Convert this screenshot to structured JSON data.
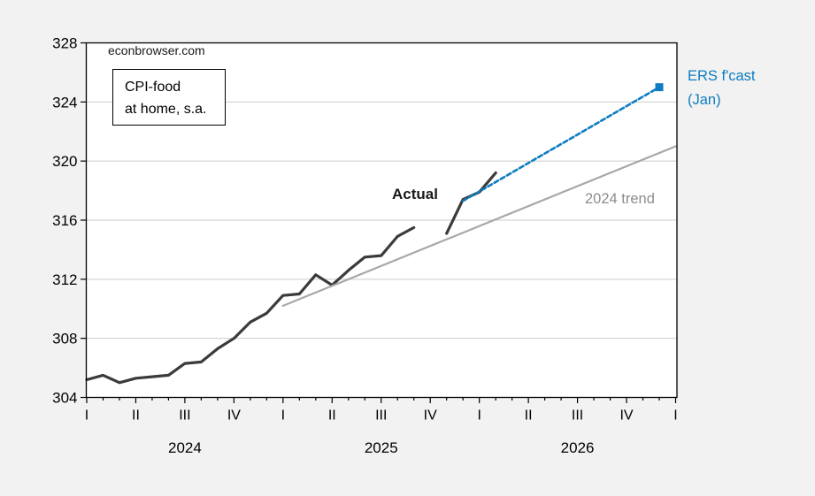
{
  "page": {
    "background": "#f2f2f2",
    "plot_background": "#ffffff"
  },
  "watermark": "econbrowser.com",
  "annotations": {
    "series_box_line1": "CPI-food",
    "series_box_line2": "at home, s.a.",
    "actual_label": "Actual",
    "trend_label": "2024 trend",
    "forecast_label_line1": "ERS f'cast",
    "forecast_label_line2": "(Jan)"
  },
  "colors": {
    "actual": "#3b3b3b",
    "trend": "#a8a8a8",
    "forecast": "#0d7cc1",
    "grid": "#cbcbcb",
    "frame": "#000000",
    "tick_text": "#000000",
    "gray_label": "#8c8c8c"
  },
  "chart_data": {
    "type": "line",
    "title": "CPI-food at home, s.a.",
    "source_watermark": "econbrowser.com",
    "ylabel": "",
    "xlabel": "",
    "ylim": [
      304,
      328
    ],
    "y_ticks": [
      304,
      308,
      312,
      316,
      320,
      324,
      328
    ],
    "grid": "horizontal",
    "x_range_months": [
      "2024-01",
      "2027-01"
    ],
    "x_quarter_labels": [
      "I",
      "II",
      "III",
      "IV",
      "I",
      "II",
      "III",
      "IV",
      "I",
      "II",
      "III",
      "IV",
      "I"
    ],
    "x_year_labels": [
      {
        "label": "2024",
        "month": "2024-07"
      },
      {
        "label": "2025",
        "month": "2025-07"
      },
      {
        "label": "2026",
        "month": "2026-07"
      }
    ],
    "note": "Gap in Actual series at 2025-10 (no data point plotted)",
    "series": [
      {
        "name": "Actual",
        "style": "solid",
        "color": "#3b3b3b",
        "width": 3.2,
        "months": [
          "2024-01",
          "2024-02",
          "2024-03",
          "2024-04",
          "2024-05",
          "2024-06",
          "2024-07",
          "2024-08",
          "2024-09",
          "2024-10",
          "2024-11",
          "2024-12",
          "2025-01",
          "2025-02",
          "2025-03",
          "2025-04",
          "2025-05",
          "2025-06",
          "2025-07",
          "2025-08",
          "2025-09",
          "2025-10",
          "2025-11",
          "2025-12",
          "2026-01",
          "2026-02"
        ],
        "values": [
          305.2,
          305.5,
          305.0,
          305.3,
          305.4,
          305.5,
          306.3,
          306.4,
          307.3,
          308.0,
          309.1,
          309.7,
          310.9,
          311.0,
          312.3,
          311.6,
          312.6,
          313.5,
          313.6,
          314.9,
          315.5,
          null,
          315.1,
          317.4,
          317.9,
          319.2
        ]
      },
      {
        "name": "2024 trend",
        "style": "solid",
        "color": "#a8a8a8",
        "width": 2.2,
        "months": [
          "2025-01",
          "2027-01"
        ],
        "values": [
          310.2,
          321.0
        ]
      },
      {
        "name": "ERS f'cast (Jan)",
        "style": "dashed",
        "color": "#0d7cc1",
        "width": 2.6,
        "end_marker": "square",
        "months": [
          "2025-12",
          "2026-12"
        ],
        "values": [
          317.3,
          325.0
        ]
      }
    ]
  }
}
